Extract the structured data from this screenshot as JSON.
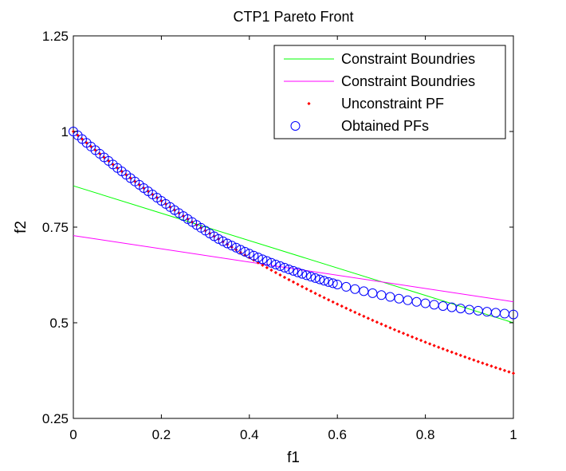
{
  "chart_data": {
    "type": "scatter",
    "title": "CTP1 Pareto Front",
    "xlabel": "f1",
    "ylabel": "f2",
    "xlim": [
      0,
      1
    ],
    "ylim": [
      0.25,
      1.25
    ],
    "xticks": [
      "0",
      "0.2",
      "0.4",
      "0.6",
      "0.8",
      "1"
    ],
    "yticks": [
      "0.25",
      "0.5",
      "0.75",
      "1",
      "1.25"
    ],
    "legend_position": "top-right",
    "grid": false,
    "series": [
      {
        "name": "Constraint Boundries",
        "kind": "line",
        "color": "#00ff00",
        "x": [
          0,
          1
        ],
        "y": [
          0.858,
          0.5
        ]
      },
      {
        "name": "Constraint Boundries",
        "kind": "line",
        "color": "#ff00ff",
        "x": [
          0,
          1
        ],
        "y": [
          0.728,
          0.555
        ]
      },
      {
        "name": "Unconstraint PF",
        "kind": "dots",
        "color": "#ff0000",
        "x": [
          0,
          0.01,
          0.02,
          0.03,
          0.04,
          0.05,
          0.06,
          0.07,
          0.08,
          0.09,
          0.1,
          0.11,
          0.12,
          0.13,
          0.14,
          0.15,
          0.16,
          0.17,
          0.18,
          0.19,
          0.2,
          0.21,
          0.22,
          0.23,
          0.24,
          0.25,
          0.26,
          0.27,
          0.28,
          0.29,
          0.3,
          0.31,
          0.32,
          0.33,
          0.34,
          0.35,
          0.36,
          0.37,
          0.38,
          0.39,
          0.4,
          0.41,
          0.42,
          0.43,
          0.44,
          0.45,
          0.46,
          0.47,
          0.48,
          0.49,
          0.5,
          0.51,
          0.52,
          0.53,
          0.54,
          0.55,
          0.56,
          0.57,
          0.58,
          0.59,
          0.6,
          0.61,
          0.62,
          0.63,
          0.64,
          0.65,
          0.66,
          0.67,
          0.68,
          0.69,
          0.7,
          0.71,
          0.72,
          0.73,
          0.74,
          0.75,
          0.76,
          0.77,
          0.78,
          0.79,
          0.8,
          0.81,
          0.82,
          0.83,
          0.84,
          0.85,
          0.86,
          0.87,
          0.88,
          0.89,
          0.9,
          0.91,
          0.92,
          0.93,
          0.94,
          0.95,
          0.96,
          0.97,
          0.98,
          0.99,
          1.0
        ],
        "y": [
          1.0,
          0.99,
          0.9802,
          0.9704,
          0.9608,
          0.9512,
          0.9418,
          0.9324,
          0.9231,
          0.9139,
          0.9048,
          0.8958,
          0.8869,
          0.8781,
          0.8694,
          0.8607,
          0.8521,
          0.8437,
          0.8353,
          0.827,
          0.8187,
          0.8106,
          0.8025,
          0.7945,
          0.7866,
          0.7788,
          0.7711,
          0.7634,
          0.7558,
          0.7483,
          0.7408,
          0.7334,
          0.7261,
          0.7189,
          0.7118,
          0.7047,
          0.6977,
          0.6907,
          0.6839,
          0.6771,
          0.6703,
          0.6637,
          0.657,
          0.6505,
          0.644,
          0.6376,
          0.6313,
          0.625,
          0.6188,
          0.6126,
          0.6065,
          0.6005,
          0.5945,
          0.5886,
          0.5827,
          0.5769,
          0.5712,
          0.5655,
          0.5599,
          0.5543,
          0.5488,
          0.5434,
          0.5379,
          0.5326,
          0.5273,
          0.522,
          0.5169,
          0.5117,
          0.5066,
          0.5016,
          0.4966,
          0.4916,
          0.4868,
          0.4819,
          0.4771,
          0.4724,
          0.4677,
          0.463,
          0.4584,
          0.4538,
          0.4493,
          0.4449,
          0.4404,
          0.436,
          0.4317,
          0.4274,
          0.4232,
          0.419,
          0.4148,
          0.4107,
          0.4066,
          0.4025,
          0.3985,
          0.3946,
          0.3906,
          0.3867,
          0.3829,
          0.3791,
          0.3753,
          0.3716,
          0.3679
        ]
      },
      {
        "name": "Obtained PFs",
        "kind": "circles",
        "color": "#0000ff",
        "x": [
          0,
          0.01,
          0.02,
          0.03,
          0.04,
          0.05,
          0.06,
          0.07,
          0.08,
          0.09,
          0.1,
          0.11,
          0.12,
          0.13,
          0.14,
          0.15,
          0.16,
          0.17,
          0.18,
          0.19,
          0.2,
          0.21,
          0.22,
          0.23,
          0.24,
          0.25,
          0.26,
          0.27,
          0.28,
          0.29,
          0.3,
          0.31,
          0.32,
          0.33,
          0.34,
          0.35,
          0.36,
          0.37,
          0.38,
          0.39,
          0.4,
          0.41,
          0.42,
          0.43,
          0.44,
          0.45,
          0.46,
          0.47,
          0.48,
          0.49,
          0.5,
          0.51,
          0.52,
          0.53,
          0.54,
          0.55,
          0.56,
          0.57,
          0.58,
          0.59,
          0.6,
          0.62,
          0.64,
          0.66,
          0.68,
          0.7,
          0.72,
          0.74,
          0.76,
          0.78,
          0.8,
          0.82,
          0.84,
          0.86,
          0.88,
          0.9,
          0.92,
          0.94,
          0.96,
          0.98,
          1.0
        ],
        "y": [
          1.0,
          0.99,
          0.9802,
          0.9704,
          0.9608,
          0.9512,
          0.9418,
          0.9324,
          0.9231,
          0.9139,
          0.9048,
          0.8958,
          0.8869,
          0.8781,
          0.8694,
          0.8607,
          0.8521,
          0.8437,
          0.8353,
          0.827,
          0.8187,
          0.8106,
          0.8025,
          0.7945,
          0.7866,
          0.7788,
          0.7711,
          0.7634,
          0.7558,
          0.7483,
          0.7408,
          0.7334,
          0.7261,
          0.719,
          0.713,
          0.7073,
          0.7017,
          0.6963,
          0.6909,
          0.6857,
          0.6806,
          0.6756,
          0.6708,
          0.666,
          0.6614,
          0.6568,
          0.6524,
          0.6481,
          0.6439,
          0.6397,
          0.6357,
          0.6318,
          0.6279,
          0.6241,
          0.6205,
          0.6169,
          0.6134,
          0.6099,
          0.6066,
          0.6033,
          0.6001,
          0.5939,
          0.5881,
          0.5826,
          0.5773,
          0.5723,
          0.5676,
          0.5631,
          0.5588,
          0.5547,
          0.5509,
          0.5472,
          0.5437,
          0.5404,
          0.5373,
          0.5343,
          0.5315,
          0.5288,
          0.5263,
          0.5239,
          0.5217
        ]
      }
    ]
  }
}
